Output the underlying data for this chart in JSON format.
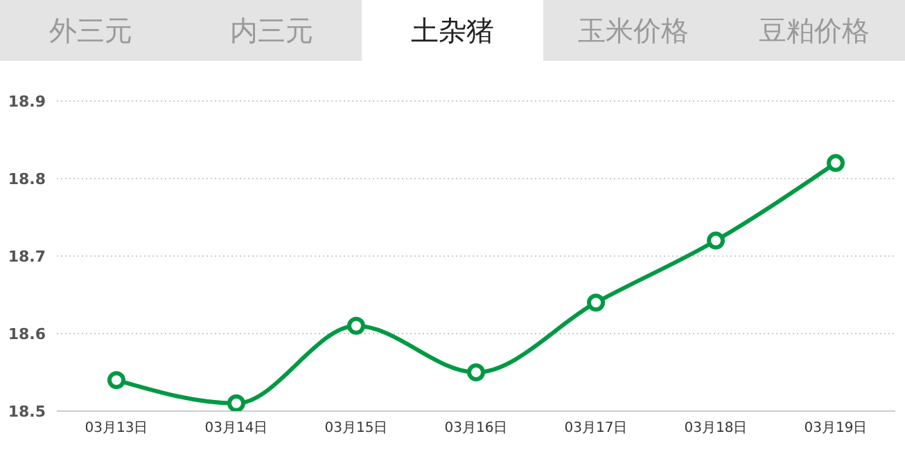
{
  "chart_data": {
    "type": "line",
    "title": "土杂猪",
    "annotations": [
      "外三元",
      "内三元",
      "玉米价格",
      "豆粕价格"
    ],
    "categories": [
      "03月13日",
      "03月14日",
      "03月15日",
      "03月16日",
      "03月17日",
      "03月18日",
      "03月19日"
    ],
    "series": [
      {
        "color": "#009944",
        "values": [
          18.54,
          18.51,
          18.61,
          18.55,
          18.64,
          18.72,
          18.82
        ]
      }
    ],
    "ylim": [
      18.5,
      18.9
    ],
    "yticks": [
      18.5,
      18.6,
      18.7,
      18.8,
      18.9
    ],
    "grid": "y",
    "marker": "circle",
    "line_style": "solid"
  }
}
